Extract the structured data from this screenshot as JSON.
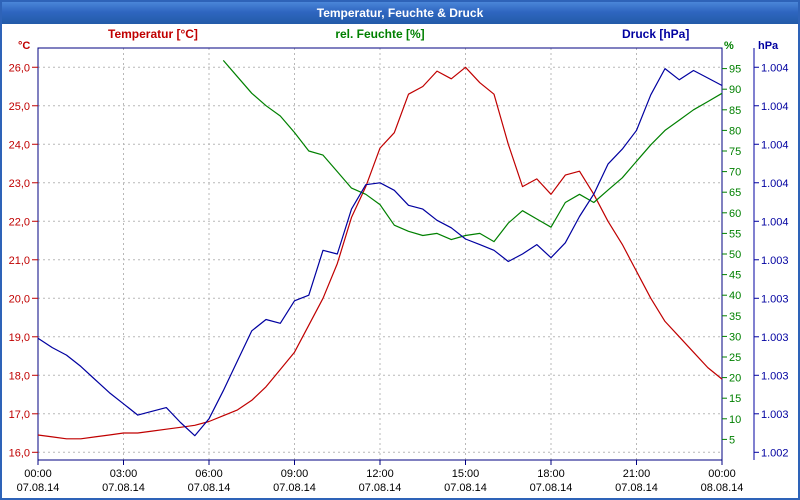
{
  "window": {
    "title": "Temperatur, Feuchte & Druck"
  },
  "chart_data": {
    "type": "line",
    "title": "Temperatur, Feuchte & Druck",
    "grid": {
      "show": true,
      "color": "#b8b8b8"
    },
    "frame_color": "#000080",
    "x_axis": {
      "hours": [
        0,
        3,
        6,
        9,
        12,
        15,
        18,
        21,
        24
      ],
      "times": [
        "00:00",
        "03:00",
        "06:00",
        "09:00",
        "12:00",
        "15:00",
        "18:00",
        "21:00",
        "00:00"
      ],
      "dates": [
        "07.08.14",
        "07.08.14",
        "07.08.14",
        "07.08.14",
        "07.08.14",
        "07.08.14",
        "07.08.14",
        "07.08.14",
        "08.08.14"
      ]
    },
    "axes": {
      "temperature": {
        "label": "Temperatur [°C]",
        "unit": "°C",
        "color": "#c00000",
        "range": [
          15.8,
          26.5
        ],
        "tick_values": [
          26,
          25,
          24,
          23,
          22,
          21,
          20,
          19,
          18,
          17,
          16
        ],
        "tick_labels": [
          "26,0",
          "25,0",
          "24,0",
          "23,0",
          "22,0",
          "21,0",
          "20,0",
          "19,0",
          "18,0",
          "17,0",
          "16,0"
        ]
      },
      "humidity": {
        "label": "rel. Feuchte [%]",
        "unit": "%",
        "color": "#008000",
        "range": [
          0,
          100
        ],
        "tick_values": [
          95,
          90,
          85,
          80,
          75,
          70,
          65,
          60,
          55,
          50,
          45,
          40,
          35,
          30,
          25,
          20,
          15,
          10,
          5
        ],
        "tick_labels": [
          "95",
          "90",
          "85",
          "80",
          "75",
          "70",
          "65",
          "60",
          "55",
          "50",
          "45",
          "40",
          "35",
          "30",
          "25",
          "20",
          "15",
          "10",
          "5"
        ]
      },
      "pressure": {
        "label": "Druck [hPa]",
        "unit": "hPa",
        "color": "#0000a0",
        "range": [
          1002.4,
          1004.6
        ],
        "tick_labels": [
          "1.004",
          "1.004",
          "1.004",
          "1.004",
          "1.004",
          "1.003",
          "1.003",
          "1.003",
          "1.003",
          "1.003",
          "1.002"
        ]
      }
    },
    "x_hours": [
      0,
      0.5,
      1,
      1.5,
      2,
      2.5,
      3,
      3.5,
      4,
      4.5,
      5,
      5.5,
      6,
      6.5,
      7,
      7.5,
      8,
      8.5,
      9,
      9.5,
      10,
      10.5,
      11,
      11.5,
      12,
      12.5,
      13,
      13.5,
      14,
      14.5,
      15,
      15.5,
      16,
      16.5,
      17,
      17.5,
      18,
      18.5,
      19,
      19.5,
      20,
      20.5,
      21,
      21.5,
      22,
      22.5,
      23,
      23.5,
      24
    ],
    "series": [
      {
        "name": "Temperatur [°C]",
        "axis": "temperature",
        "color": "#c00000",
        "values": [
          16.45,
          16.4,
          16.35,
          16.35,
          16.4,
          16.45,
          16.5,
          16.5,
          16.55,
          16.6,
          16.65,
          16.7,
          16.8,
          16.95,
          17.1,
          17.35,
          17.7,
          18.15,
          18.6,
          19.3,
          20.0,
          20.9,
          22.1,
          22.9,
          23.9,
          24.3,
          25.3,
          25.5,
          25.9,
          25.7,
          26.0,
          25.6,
          25.3,
          24.0,
          22.9,
          23.1,
          22.7,
          23.2,
          23.3,
          22.7,
          22.0,
          21.4,
          20.7,
          20.0,
          19.4,
          19.0,
          18.6,
          18.2,
          17.9
        ]
      },
      {
        "name": "rel. Feuchte [%]",
        "axis": "humidity",
        "color": "#008000",
        "values": [
          null,
          null,
          null,
          null,
          null,
          null,
          null,
          null,
          null,
          null,
          null,
          null,
          null,
          97,
          93,
          89,
          86,
          83.5,
          79.5,
          75,
          74,
          70,
          66,
          64.5,
          62,
          57,
          55.5,
          54.5,
          55,
          53.5,
          54.5,
          55,
          53,
          57.5,
          60.5,
          58.5,
          56.5,
          62.5,
          64.5,
          62.5,
          65.5,
          68.5,
          72.5,
          76.5,
          80,
          82.5,
          85,
          87,
          89
        ]
      },
      {
        "name": "Druck [hPa]",
        "axis": "pressure",
        "color": "#0000a0",
        "values": [
          1003.05,
          1003.0,
          1002.96,
          1002.9,
          1002.83,
          1002.76,
          1002.7,
          1002.64,
          1002.66,
          1002.68,
          1002.6,
          1002.53,
          1002.62,
          1002.77,
          1002.93,
          1003.09,
          1003.15,
          1003.13,
          1003.25,
          1003.28,
          1003.52,
          1003.5,
          1003.74,
          1003.87,
          1003.88,
          1003.84,
          1003.76,
          1003.74,
          1003.68,
          1003.64,
          1003.58,
          1003.55,
          1003.52,
          1003.46,
          1003.5,
          1003.55,
          1003.48,
          1003.56,
          1003.7,
          1003.82,
          1003.98,
          1004.06,
          1004.16,
          1004.35,
          1004.49,
          1004.43,
          1004.48,
          1004.44,
          1004.4
        ]
      }
    ]
  }
}
